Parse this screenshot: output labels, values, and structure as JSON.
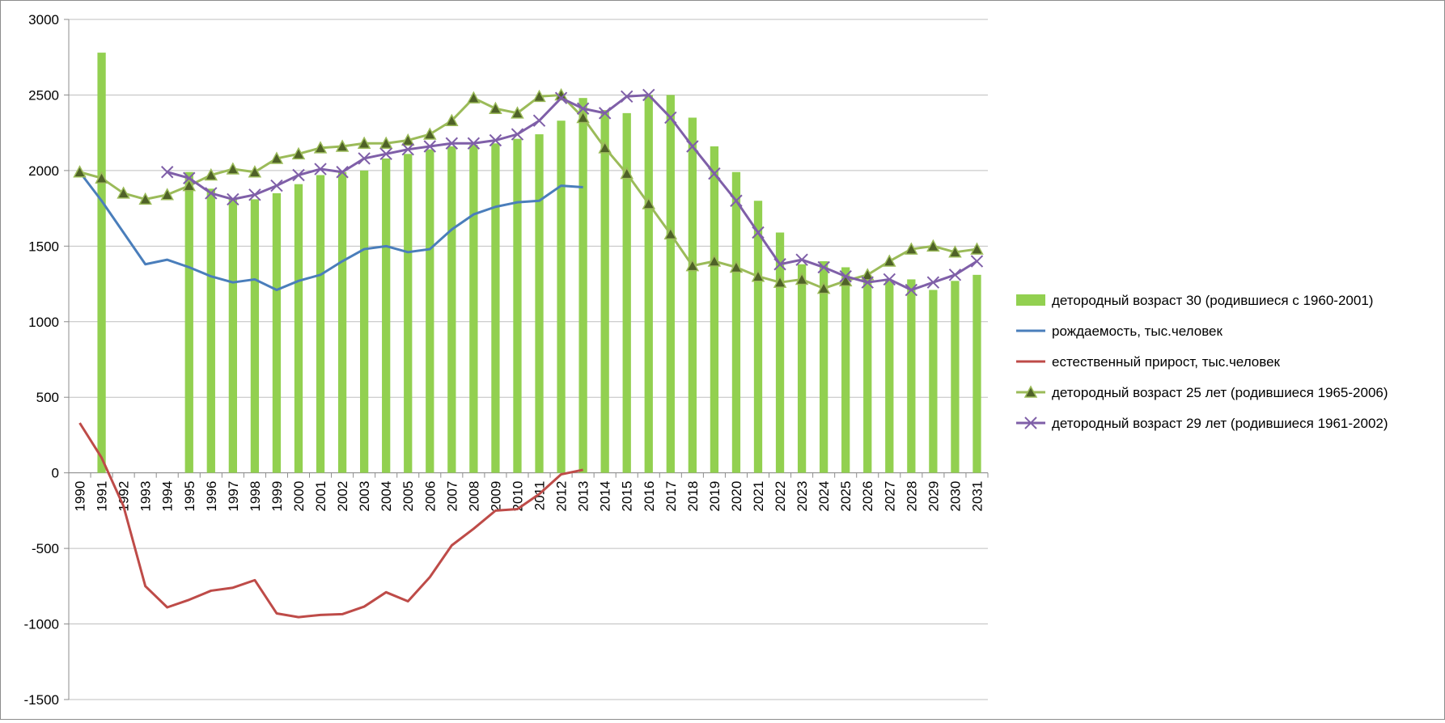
{
  "chart_data": {
    "type": "bar+line",
    "title": "",
    "xlabel": "",
    "ylabel": "",
    "ylim": [
      -1500,
      3000
    ],
    "yticks": [
      -1500,
      -1000,
      -500,
      0,
      500,
      1000,
      1500,
      2000,
      2500,
      3000
    ],
    "grid": true,
    "legend_position": "right",
    "categories": [
      "1990",
      "1991",
      "1992",
      "1993",
      "1994",
      "1995",
      "1996",
      "1997",
      "1998",
      "1999",
      "2000",
      "2001",
      "2002",
      "2003",
      "2004",
      "2005",
      "2006",
      "2007",
      "2008",
      "2009",
      "2010",
      "2011",
      "2012",
      "2013",
      "2014",
      "2015",
      "2016",
      "2017",
      "2018",
      "2019",
      "2020",
      "2021",
      "2022",
      "2023",
      "2024",
      "2025",
      "2026",
      "2027",
      "2028",
      "2029",
      "2030",
      "2031"
    ],
    "series": [
      {
        "name": "детородный возраст 30 (родившиеся с 1960-2001)",
        "kind": "bar",
        "color": "#92d050",
        "values": [
          null,
          2780,
          null,
          null,
          null,
          1990,
          1880,
          1810,
          1810,
          1850,
          1910,
          1970,
          1990,
          2000,
          2080,
          2110,
          2140,
          2160,
          2170,
          2180,
          2210,
          2240,
          2330,
          2480,
          2400,
          2380,
          2500,
          2500,
          2350,
          2160,
          1990,
          1800,
          1590,
          1380,
          1400,
          1360,
          1290,
          1270,
          1280,
          1210,
          1270,
          1310
        ]
      },
      {
        "name": "рождаемость, тыс.человек",
        "kind": "line",
        "color": "#4a7ebb",
        "values": [
          1990,
          1800,
          1590,
          1380,
          1410,
          1360,
          1300,
          1260,
          1280,
          1210,
          1270,
          1310,
          1400,
          1480,
          1500,
          1460,
          1480,
          1610,
          1710,
          1760,
          1790,
          1800,
          1900,
          1890,
          null,
          null,
          null,
          null,
          null,
          null,
          null,
          null,
          null,
          null,
          null,
          null,
          null,
          null,
          null,
          null,
          null,
          null
        ]
      },
      {
        "name": "естественный прирост, тыс.человек",
        "kind": "line",
        "color": "#be4b48",
        "values": [
          330,
          100,
          -220,
          -750,
          -890,
          -840,
          -780,
          -760,
          -710,
          -930,
          -955,
          -940,
          -935,
          -885,
          -790,
          -850,
          -690,
          -480,
          -370,
          -250,
          -240,
          -140,
          -10,
          20,
          null,
          null,
          null,
          null,
          null,
          null,
          null,
          null,
          null,
          null,
          null,
          null,
          null,
          null,
          null,
          null,
          null,
          null
        ]
      },
      {
        "name": "детородный возраст 25 лет (родившиеся 1965-2006)",
        "kind": "line",
        "marker": "triangle",
        "color": "#9bbb59",
        "values": [
          1990,
          1950,
          1850,
          1810,
          1840,
          1900,
          1970,
          2010,
          1990,
          2080,
          2110,
          2150,
          2160,
          2180,
          2180,
          2200,
          2240,
          2330,
          2480,
          2410,
          2380,
          2490,
          2500,
          2350,
          2150,
          1980,
          1780,
          1580,
          1370,
          1400,
          1360,
          1300,
          1260,
          1280,
          1220,
          1270,
          1310,
          1400,
          1480,
          1500,
          1460,
          1480
        ]
      },
      {
        "name": "детородный возраст 29 лет (родившиеся 1961-2002)",
        "kind": "line",
        "marker": "x",
        "color": "#7f5fa8",
        "values": [
          null,
          null,
          null,
          null,
          1990,
          1950,
          1850,
          1810,
          1840,
          1900,
          1970,
          2010,
          1990,
          2080,
          2110,
          2140,
          2160,
          2180,
          2180,
          2200,
          2240,
          2330,
          2480,
          2410,
          2380,
          2490,
          2500,
          2350,
          2160,
          1980,
          1800,
          1590,
          1380,
          1410,
          1360,
          1300,
          1260,
          1280,
          1210,
          1260,
          1310,
          1400
        ]
      }
    ]
  }
}
